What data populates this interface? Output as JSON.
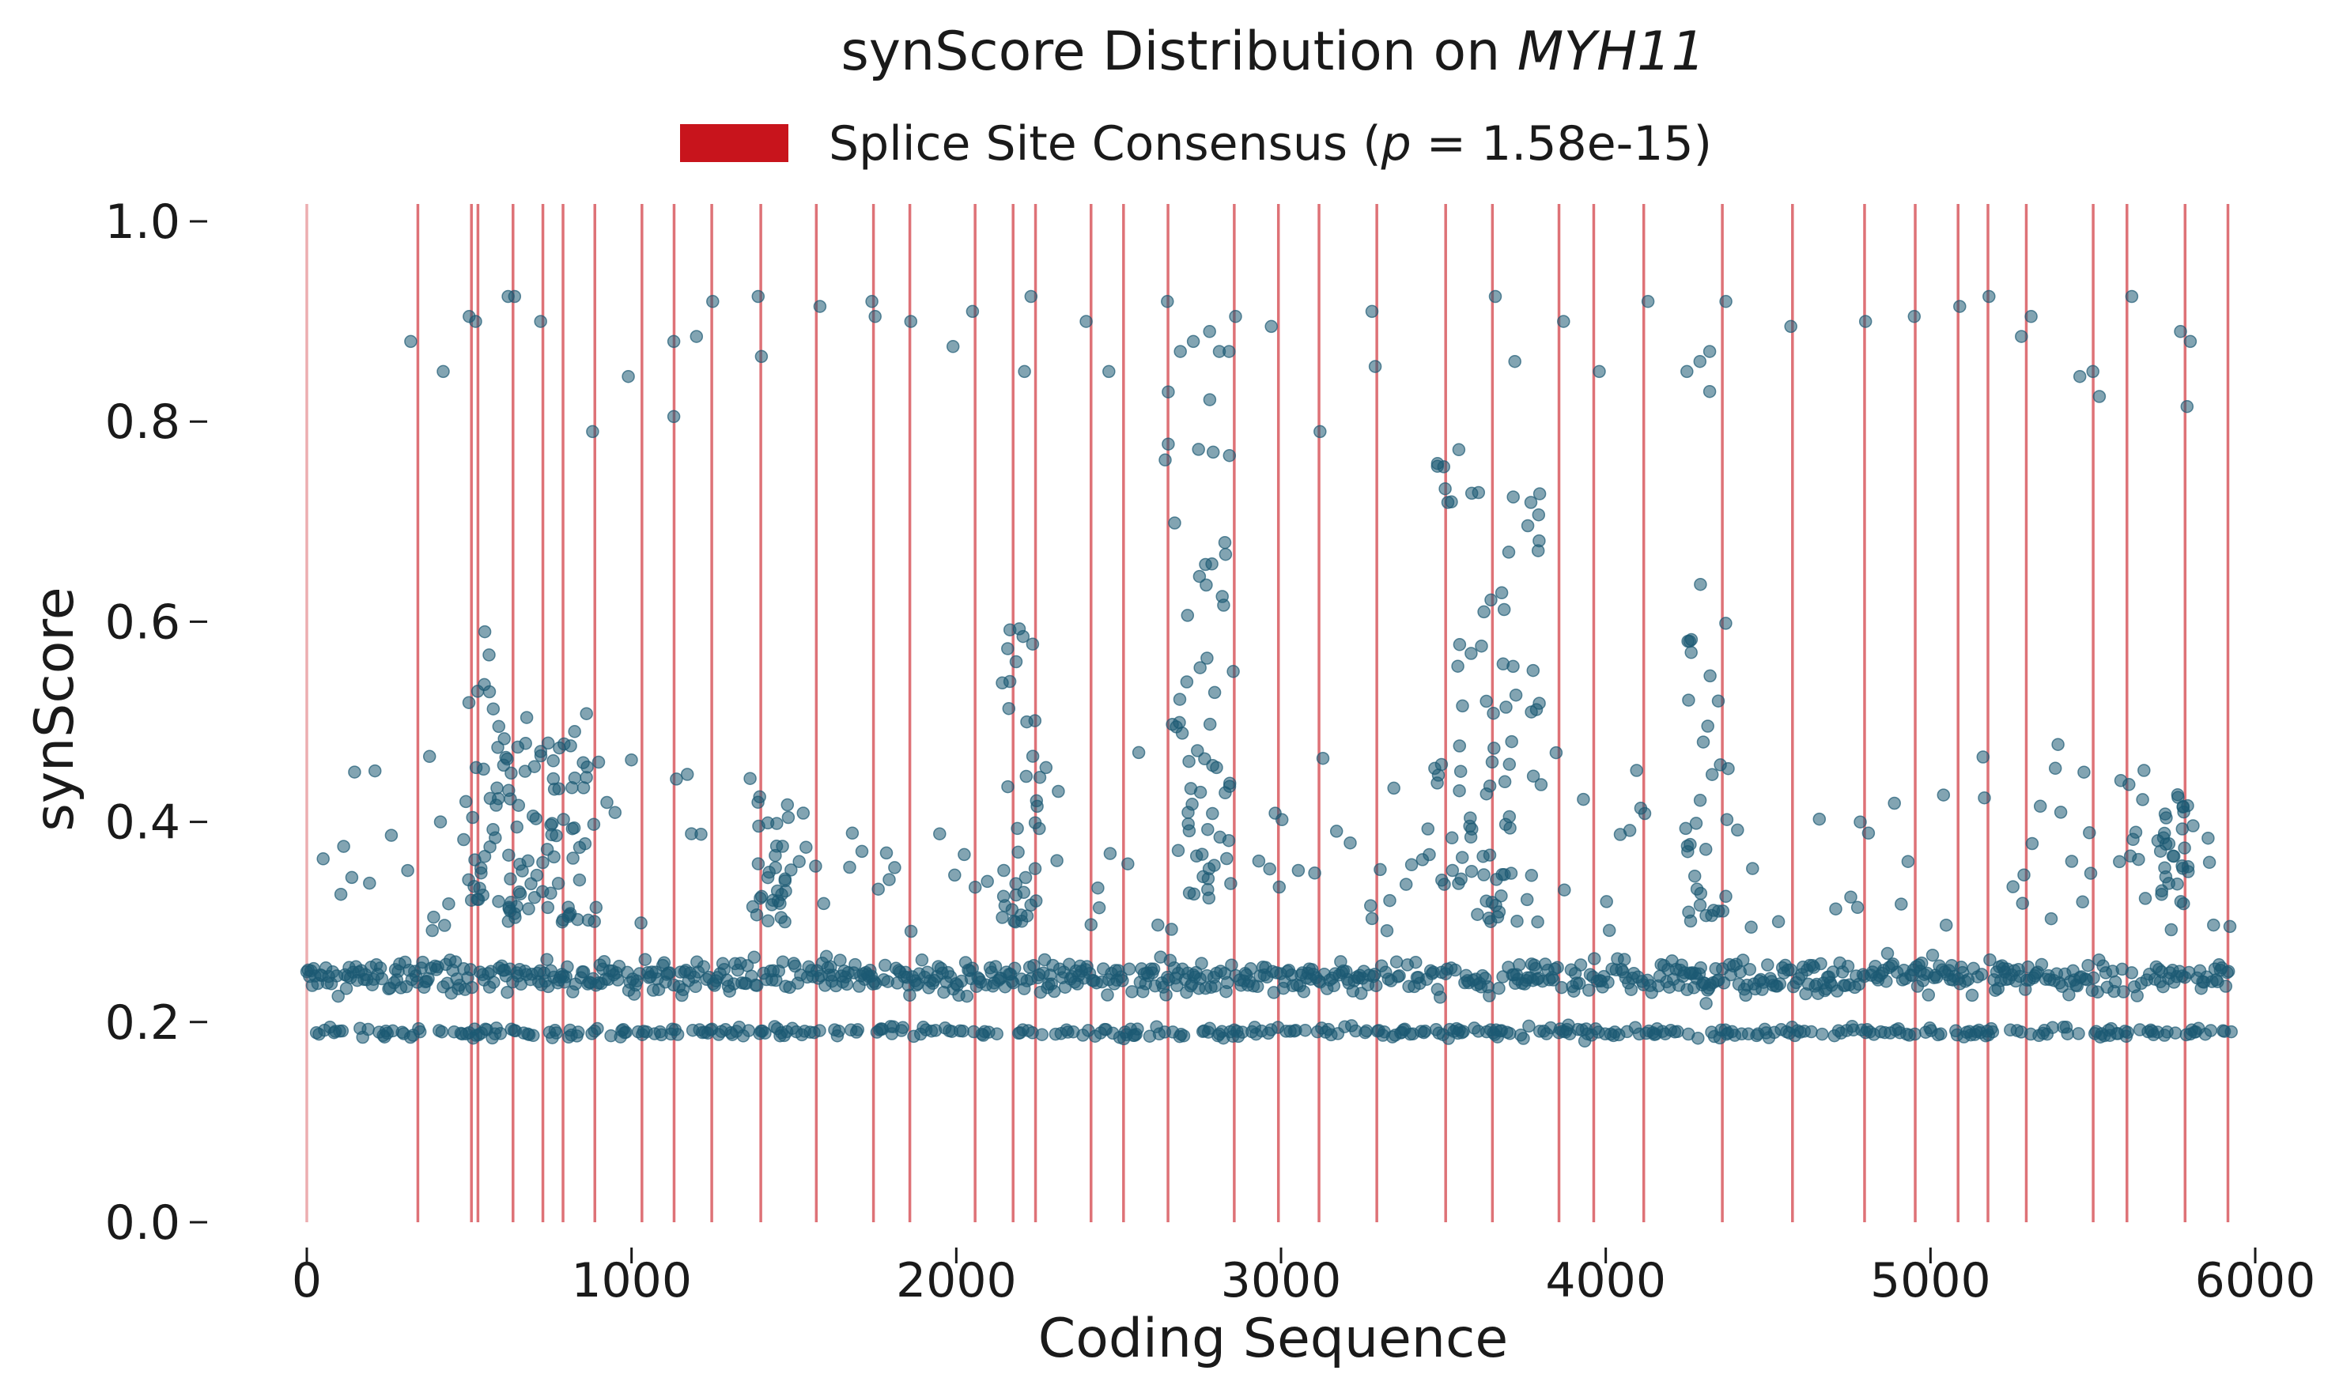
{
  "chart_data": {
    "type": "scatter",
    "title": "synScore Distribution on MYH11",
    "title_prefix": "synScore Distribution on ",
    "title_gene": "MYH11",
    "xlabel": "Coding Sequence",
    "ylabel": "synScore",
    "xlim": [
      0,
      6000
    ],
    "ylim": [
      0,
      1.0
    ],
    "x_ticks": [
      0,
      1000,
      2000,
      3000,
      4000,
      5000,
      6000
    ],
    "x_tick_labels": [
      "0",
      "1000",
      "2000",
      "3000",
      "4000",
      "5000",
      "6000"
    ],
    "y_ticks": [
      0.0,
      0.2,
      0.4,
      0.6,
      0.8,
      1.0
    ],
    "y_tick_labels": [
      "0.0",
      "0.2",
      "0.4",
      "0.6",
      "0.8",
      "1.0"
    ],
    "grid": false,
    "legend": {
      "placement": "top-center",
      "entries": [
        {
          "label_prefix": "Splice Site Consensus (",
          "label_italic": "p",
          "label_suffix": " = 1.58e-15)",
          "color": "#c8141c"
        }
      ]
    },
    "colors": {
      "points": "#1c5a73",
      "splice_lines": "#c8141c"
    },
    "splice_sites": [
      0,
      342,
      507,
      527,
      635,
      727,
      789,
      887,
      1032,
      1131,
      1247,
      1398,
      1569,
      1745,
      1857,
      2058,
      2175,
      2244,
      2415,
      2515,
      2652,
      2856,
      2992,
      3117,
      3295,
      3507,
      3651,
      3856,
      3963,
      4117,
      4359,
      4575,
      4797,
      4953,
      5085,
      5177,
      5295,
      5501,
      5605,
      5784,
      5916
    ],
    "series": [
      {
        "values_desc": "High-score outliers",
        "points": [
          [
            320,
            0.88
          ],
          [
            420,
            0.85
          ],
          [
            500,
            0.905
          ],
          [
            520,
            0.9
          ],
          [
            620,
            0.925
          ],
          [
            640,
            0.925
          ],
          [
            720,
            0.9
          ],
          [
            880,
            0.79
          ],
          [
            990,
            0.845
          ],
          [
            1130,
            0.88
          ],
          [
            1130,
            0.805
          ],
          [
            1200,
            0.885
          ],
          [
            1250,
            0.92
          ],
          [
            1390,
            0.925
          ],
          [
            1400,
            0.865
          ],
          [
            1580,
            0.915
          ],
          [
            1740,
            0.92
          ],
          [
            1750,
            0.905
          ],
          [
            1860,
            0.9
          ],
          [
            1990,
            0.875
          ],
          [
            2050,
            0.91
          ],
          [
            2210,
            0.85
          ],
          [
            2230,
            0.925
          ],
          [
            2400,
            0.9
          ],
          [
            2470,
            0.85
          ],
          [
            2650,
            0.92
          ],
          [
            2690,
            0.87
          ],
          [
            2730,
            0.88
          ],
          [
            2780,
            0.89
          ],
          [
            2810,
            0.87
          ],
          [
            2840,
            0.87
          ],
          [
            2860,
            0.905
          ],
          [
            2970,
            0.895
          ],
          [
            3120,
            0.79
          ],
          [
            3280,
            0.91
          ],
          [
            3290,
            0.855
          ],
          [
            3660,
            0.925
          ],
          [
            3720,
            0.86
          ],
          [
            3870,
            0.9
          ],
          [
            3980,
            0.85
          ],
          [
            4130,
            0.92
          ],
          [
            4250,
            0.85
          ],
          [
            4290,
            0.86
          ],
          [
            4320,
            0.87
          ],
          [
            4320,
            0.83
          ],
          [
            4370,
            0.92
          ],
          [
            4570,
            0.895
          ],
          [
            4800,
            0.9
          ],
          [
            4950,
            0.905
          ],
          [
            5090,
            0.915
          ],
          [
            5180,
            0.925
          ],
          [
            5280,
            0.885
          ],
          [
            5310,
            0.905
          ],
          [
            5460,
            0.845
          ],
          [
            5500,
            0.85
          ],
          [
            5520,
            0.825
          ],
          [
            5620,
            0.925
          ],
          [
            5770,
            0.89
          ],
          [
            5800,
            0.88
          ],
          [
            5790,
            0.815
          ]
        ]
      }
    ]
  }
}
